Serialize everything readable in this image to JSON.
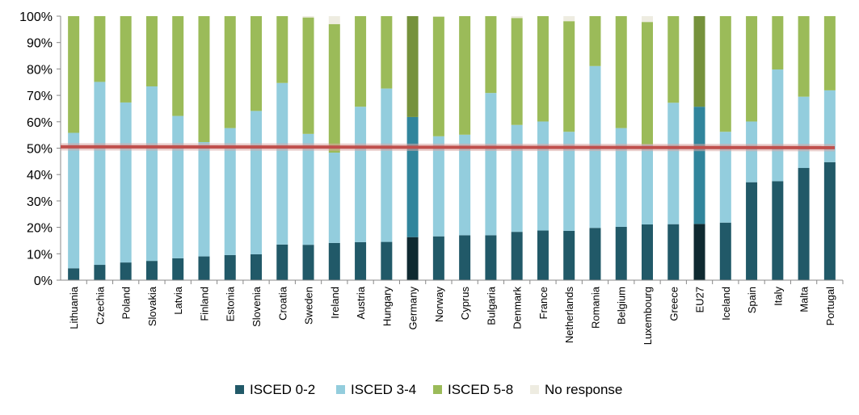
{
  "chart_data": {
    "type": "bar",
    "stacked": true,
    "percent_stacked": true,
    "categories": [
      "Lithuania",
      "Czechia",
      "Poland",
      "Slovakia",
      "Latvia",
      "Finland",
      "Estonia",
      "Slovenia",
      "Croatia",
      "Sweden",
      "Ireland",
      "Austria",
      "Hungary",
      "Germany",
      "Norway",
      "Cyprus",
      "Bulgaria",
      "Denmark",
      "France",
      "Netherlands",
      "Romania",
      "Belgium",
      "Luxembourg",
      "Greece",
      "EU27",
      "Iceland",
      "Spain",
      "Italy",
      "Malta",
      "Portugal"
    ],
    "series": [
      {
        "name": "ISCED 0-2",
        "color": "#215968",
        "highlight_color": "#0f2a31",
        "values": [
          4.5,
          5.8,
          6.7,
          7.3,
          8.3,
          9.0,
          9.5,
          9.8,
          13.5,
          13.4,
          14.1,
          14.4,
          14.5,
          16.3,
          16.6,
          17.0,
          17.0,
          18.3,
          18.8,
          18.7,
          19.8,
          20.2,
          21.1,
          21.2,
          21.3,
          21.8,
          37.1,
          37.5,
          42.5,
          44.7
        ]
      },
      {
        "name": "ISCED 3-4",
        "color": "#93cddd",
        "highlight_color": "#31859c",
        "values": [
          51.3,
          69.3,
          60.6,
          66.1,
          53.9,
          43.3,
          48.1,
          54.3,
          61.2,
          42.0,
          34.2,
          51.3,
          58.1,
          45.5,
          37.9,
          38.1,
          53.9,
          40.5,
          41.3,
          37.5,
          61.3,
          37.4,
          30.2,
          46.0,
          44.4,
          34.4,
          23.0,
          42.3,
          27.0,
          27.2
        ]
      },
      {
        "name": "ISCED 5-8",
        "color": "#9bbb59",
        "highlight_color": "#76923c",
        "values": [
          44.2,
          24.9,
          32.7,
          26.6,
          37.8,
          47.7,
          42.4,
          35.9,
          25.3,
          44.1,
          48.7,
          34.3,
          27.4,
          38.2,
          45.3,
          44.9,
          29.1,
          40.5,
          39.9,
          41.9,
          18.9,
          42.4,
          46.5,
          32.8,
          34.3,
          43.8,
          39.9,
          20.2,
          30.5,
          28.1
        ]
      },
      {
        "name": "No response",
        "color": "#eeece1",
        "highlight_color": "#eeece1",
        "values": [
          0,
          0,
          0,
          0,
          0,
          0,
          0,
          0,
          0,
          0.5,
          3.0,
          0,
          0,
          0,
          0.2,
          0,
          0,
          0.7,
          0,
          1.9,
          0,
          0,
          2.2,
          0,
          0,
          0,
          0,
          0,
          0,
          0
        ]
      }
    ],
    "highlighted_categories": [
      "Germany",
      "EU27"
    ],
    "reference_line": {
      "value": 50.5,
      "color": "#c0504d"
    },
    "ylim": [
      0,
      100
    ],
    "y_ticks": [
      "0%",
      "10%",
      "20%",
      "30%",
      "40%",
      "50%",
      "60%",
      "70%",
      "80%",
      "90%",
      "100%"
    ],
    "grid": false,
    "legend_position": "bottom",
    "title": "",
    "xlabel": "",
    "ylabel": ""
  }
}
